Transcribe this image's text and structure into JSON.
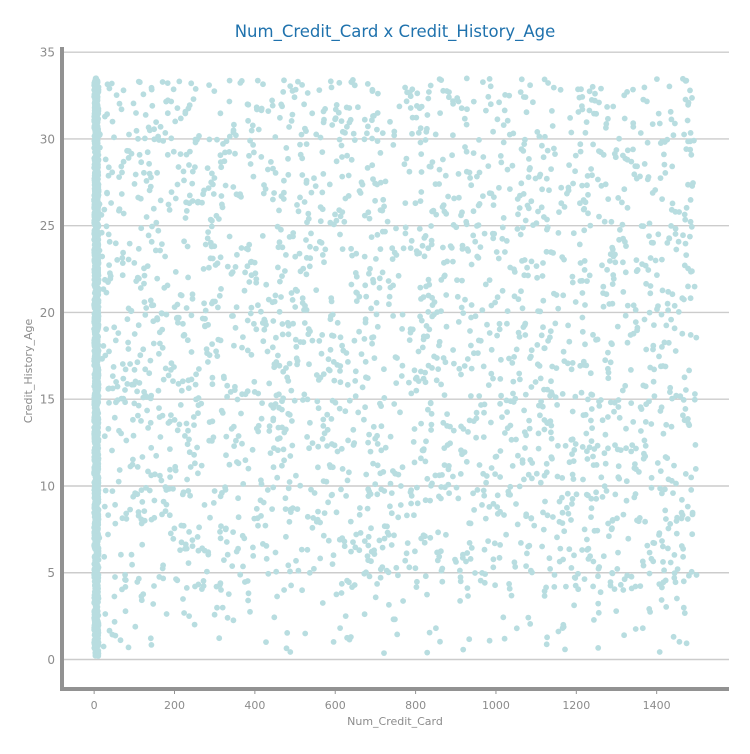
{
  "chart_data": {
    "type": "scatter",
    "title": "Num_Credit_Card x Credit_History_Age",
    "xlabel": "Num_Credit_Card",
    "ylabel": "Credit_History_Age",
    "xlim": [
      -80,
      1580
    ],
    "ylim": [
      -1.7,
      35.3
    ],
    "xticks": [
      0,
      200,
      400,
      600,
      800,
      1000,
      1200,
      1400
    ],
    "yticks": [
      0,
      5,
      10,
      15,
      20,
      25,
      30,
      35
    ],
    "grid": "horizontal",
    "legend": "none",
    "color": "#b8dde0",
    "series": [
      {
        "description": "dense cluster at Num_Credit_Card 0-11 spanning Credit_History_Age 0.1-33.5",
        "x_range": [
          0,
          11
        ],
        "y_range": [
          0.1,
          33.5
        ],
        "x": [
          4,
          5,
          6,
          3,
          7,
          5,
          4,
          8,
          6,
          5,
          3,
          7,
          4,
          6,
          5,
          9,
          2,
          5,
          6,
          4
        ],
        "y": [
          0.3,
          1.8,
          3.6,
          5.2,
          7.1,
          8.9,
          10.4,
          12.2,
          13.8,
          15.5,
          17.3,
          19.0,
          20.6,
          22.4,
          24.1,
          25.9,
          27.5,
          29.3,
          31.0,
          33.2
        ]
      },
      {
        "description": "uniform scatter of outlier card counts 12-1500 across ages 0.3-33.5",
        "x_range": [
          12,
          1500
        ],
        "y_range": [
          0.3,
          33.5
        ],
        "x": [
          62,
          147,
          233,
          318,
          405,
          487,
          572,
          660,
          744,
          829,
          913,
          1001,
          1085,
          1170,
          1254,
          1341,
          1423,
          1478,
          98,
          1209
        ],
        "y": [
          27.8,
          3.2,
          18.4,
          9.6,
          31.7,
          14.1,
          22.9,
          6.3,
          19.8,
          0.4,
          25.6,
          11.7,
          33.1,
          17.2,
          4.8,
          29.4,
          8.1,
          21.5,
          12.9,
          26.3
        ]
      }
    ]
  }
}
